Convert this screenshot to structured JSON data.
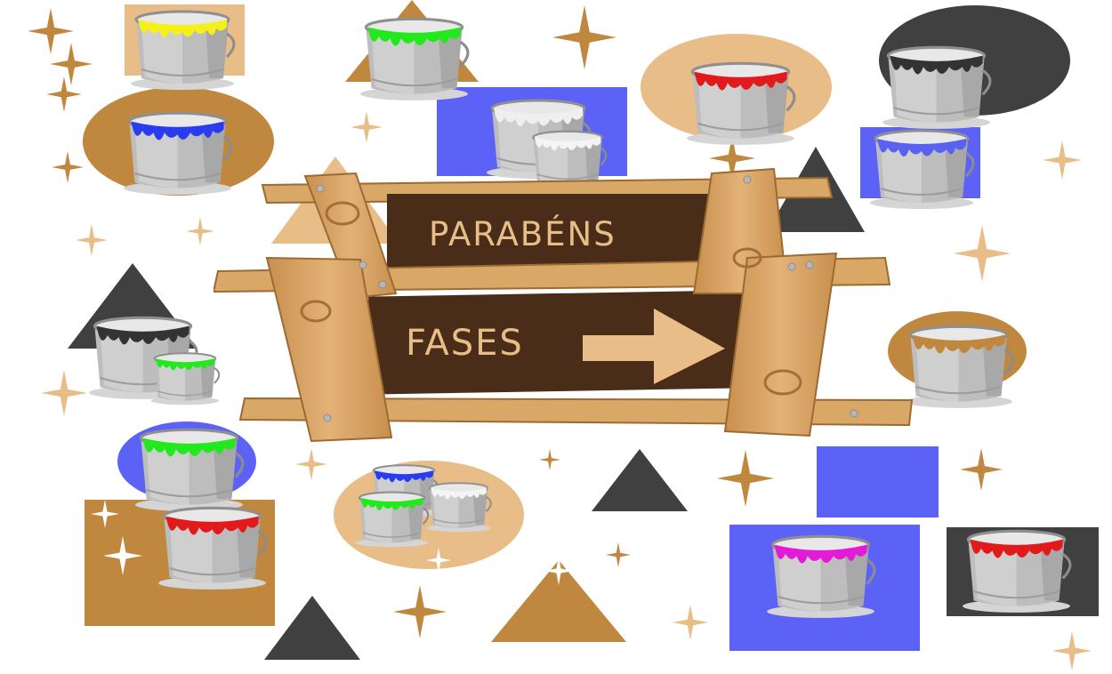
{
  "sign": {
    "congrats_label": "PARABÉNS",
    "phases_label": "FASES"
  },
  "palette": {
    "tan": "#e9bd87",
    "brown": "#c0873f",
    "dark": "#404040",
    "blue": "#5c62f5",
    "board_dark": "#4a2d18",
    "wood": "#d6a566"
  },
  "icons": {
    "arrow": "arrow-right-icon",
    "decor": [
      "star-icon",
      "triangle-shape",
      "paint-bucket-icon"
    ]
  },
  "buckets": [
    {
      "paint": "#f5ef1a"
    },
    {
      "paint": "#22e81c"
    },
    {
      "paint": "#efefef"
    },
    {
      "paint": "#333333"
    },
    {
      "paint": "#2a3cf0"
    },
    {
      "paint": "#f4f4f4"
    },
    {
      "paint": "#e11b1b"
    },
    {
      "paint": "#5861f0"
    },
    {
      "paint": "#333333"
    },
    {
      "paint": "#22e81c"
    },
    {
      "paint": "#c0873f"
    },
    {
      "paint": "#22e81c"
    },
    {
      "paint": "#e11b1b"
    },
    {
      "paint": "#2a3cf0"
    },
    {
      "paint": "#f4f4f4"
    },
    {
      "paint": "#22e81c"
    },
    {
      "paint": "#e31ad8"
    },
    {
      "paint": "#e11b1b"
    }
  ]
}
